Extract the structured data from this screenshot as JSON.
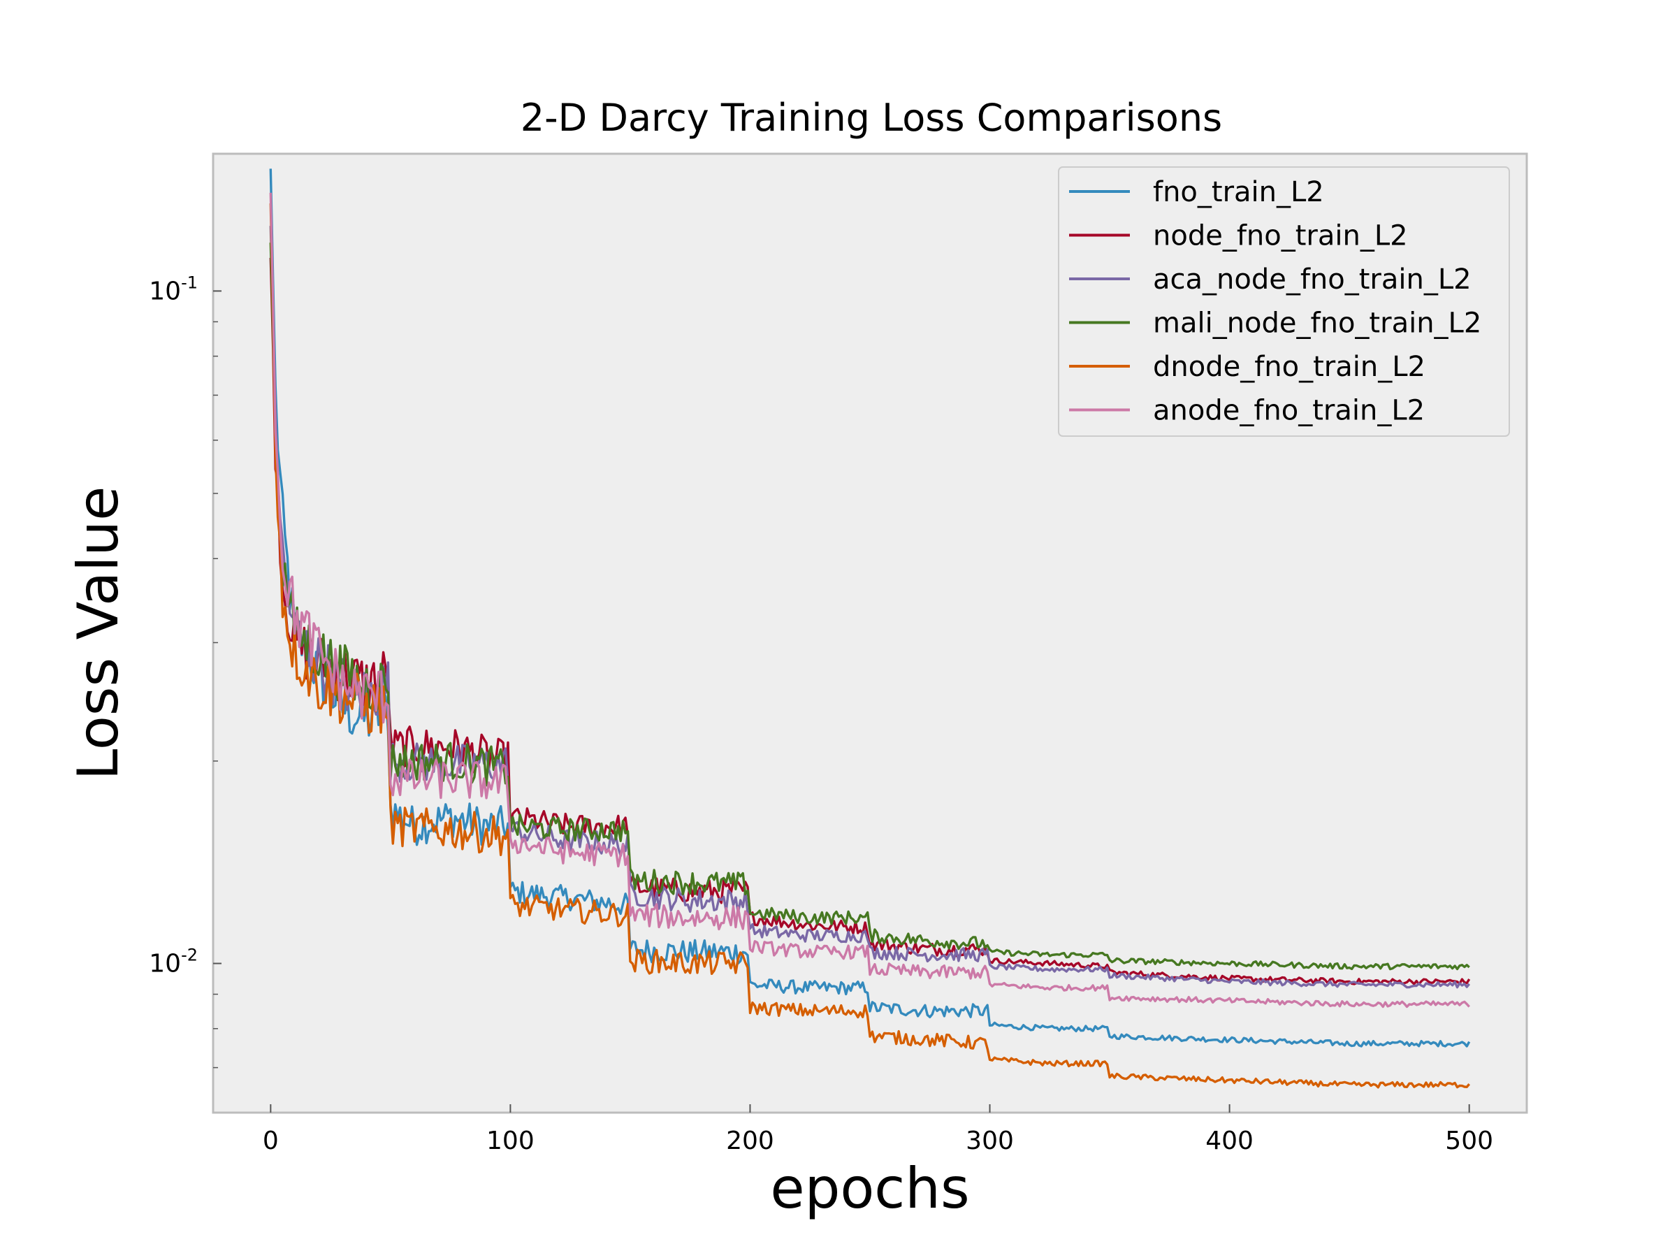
{
  "chart_data": {
    "type": "line",
    "title": "2-D Darcy Training Loss Comparisons",
    "xlabel": "epochs",
    "ylabel": "Loss Value",
    "xlim": [
      -24,
      524
    ],
    "ylim": [
      0.006,
      0.16
    ],
    "yscale": "log",
    "x_ticks": [
      0,
      100,
      200,
      300,
      400,
      500
    ],
    "y_ticks": [
      {
        "value": 0.1,
        "base": "10",
        "exp": "-1"
      },
      {
        "value": 0.01,
        "base": "10",
        "exp": "-2"
      }
    ],
    "grid": false,
    "legend_position": "top-right",
    "series": [
      {
        "name": "fno_train_L2",
        "color": "#348ABD",
        "points": [
          [
            0,
            0.152
          ],
          [
            2,
            0.07
          ],
          [
            5,
            0.045
          ],
          [
            10,
            0.031
          ],
          [
            20,
            0.027
          ],
          [
            30,
            0.024
          ],
          [
            40,
            0.023
          ],
          [
            49,
            0.024
          ],
          [
            50,
            0.017
          ],
          [
            60,
            0.016
          ],
          [
            75,
            0.0165
          ],
          [
            90,
            0.016
          ],
          [
            99,
            0.016
          ],
          [
            100,
            0.0128
          ],
          [
            125,
            0.0125
          ],
          [
            149,
            0.0122
          ],
          [
            150,
            0.0105
          ],
          [
            175,
            0.0104
          ],
          [
            199,
            0.0104
          ],
          [
            200,
            0.0093
          ],
          [
            225,
            0.0092
          ],
          [
            249,
            0.0092
          ],
          [
            250,
            0.0086
          ],
          [
            275,
            0.0085
          ],
          [
            299,
            0.0085
          ],
          [
            300,
            0.0081
          ],
          [
            325,
            0.008
          ],
          [
            349,
            0.008
          ],
          [
            350,
            0.0078
          ],
          [
            400,
            0.0077
          ],
          [
            450,
            0.0076
          ],
          [
            500,
            0.0076
          ]
        ]
      },
      {
        "name": "node_fno_train_L2",
        "color": "#A60628",
        "points": [
          [
            0,
            0.112
          ],
          [
            2,
            0.06
          ],
          [
            5,
            0.037
          ],
          [
            10,
            0.03
          ],
          [
            20,
            0.028
          ],
          [
            30,
            0.027
          ],
          [
            40,
            0.026
          ],
          [
            49,
            0.027
          ],
          [
            50,
            0.021
          ],
          [
            75,
            0.021
          ],
          [
            99,
            0.02
          ],
          [
            100,
            0.0165
          ],
          [
            125,
            0.016
          ],
          [
            149,
            0.016
          ],
          [
            150,
            0.013
          ],
          [
            175,
            0.0128
          ],
          [
            199,
            0.0128
          ],
          [
            200,
            0.0117
          ],
          [
            225,
            0.0114
          ],
          [
            249,
            0.0113
          ],
          [
            250,
            0.0107
          ],
          [
            275,
            0.0105
          ],
          [
            299,
            0.0105
          ],
          [
            300,
            0.0101
          ],
          [
            325,
            0.01
          ],
          [
            349,
            0.0099
          ],
          [
            350,
            0.0097
          ],
          [
            400,
            0.0095
          ],
          [
            450,
            0.0094
          ],
          [
            500,
            0.0094
          ]
        ]
      },
      {
        "name": "aca_node_fno_train_L2",
        "color": "#7A68A6",
        "points": [
          [
            0,
            0.125
          ],
          [
            2,
            0.065
          ],
          [
            5,
            0.04
          ],
          [
            10,
            0.031
          ],
          [
            20,
            0.028
          ],
          [
            30,
            0.026
          ],
          [
            40,
            0.025
          ],
          [
            49,
            0.026
          ],
          [
            50,
            0.02
          ],
          [
            75,
            0.0198
          ],
          [
            99,
            0.0198
          ],
          [
            100,
            0.0158
          ],
          [
            125,
            0.0152
          ],
          [
            149,
            0.015
          ],
          [
            150,
            0.0127
          ],
          [
            175,
            0.0124
          ],
          [
            199,
            0.0124
          ],
          [
            200,
            0.0112
          ],
          [
            225,
            0.011
          ],
          [
            249,
            0.011
          ],
          [
            250,
            0.0104
          ],
          [
            275,
            0.0103
          ],
          [
            299,
            0.0103
          ],
          [
            300,
            0.0099
          ],
          [
            325,
            0.0098
          ],
          [
            349,
            0.0098
          ],
          [
            350,
            0.0096
          ],
          [
            400,
            0.0094
          ],
          [
            450,
            0.0093
          ],
          [
            500,
            0.0093
          ]
        ]
      },
      {
        "name": "mali_node_fno_train_L2",
        "color": "#467821",
        "points": [
          [
            0,
            0.118
          ],
          [
            2,
            0.062
          ],
          [
            5,
            0.039
          ],
          [
            10,
            0.031
          ],
          [
            20,
            0.029
          ],
          [
            30,
            0.027
          ],
          [
            40,
            0.026
          ],
          [
            49,
            0.026
          ],
          [
            50,
            0.02
          ],
          [
            75,
            0.02
          ],
          [
            99,
            0.0195
          ],
          [
            100,
            0.016
          ],
          [
            125,
            0.0158
          ],
          [
            149,
            0.0158
          ],
          [
            150,
            0.0133
          ],
          [
            175,
            0.0132
          ],
          [
            199,
            0.0131
          ],
          [
            200,
            0.0119
          ],
          [
            225,
            0.0117
          ],
          [
            249,
            0.0117
          ],
          [
            250,
            0.011
          ],
          [
            275,
            0.0108
          ],
          [
            299,
            0.0107
          ],
          [
            300,
            0.0104
          ],
          [
            325,
            0.0103
          ],
          [
            349,
            0.0103
          ],
          [
            350,
            0.0101
          ],
          [
            400,
            0.01
          ],
          [
            450,
            0.0099
          ],
          [
            500,
            0.0099
          ]
        ]
      },
      {
        "name": "dnode_fno_train_L2",
        "color": "#D55E00",
        "points": [
          [
            0,
            0.135
          ],
          [
            2,
            0.06
          ],
          [
            5,
            0.035
          ],
          [
            10,
            0.029
          ],
          [
            20,
            0.026
          ],
          [
            30,
            0.025
          ],
          [
            40,
            0.024
          ],
          [
            49,
            0.024
          ],
          [
            50,
            0.016
          ],
          [
            75,
            0.0158
          ],
          [
            99,
            0.0155
          ],
          [
            100,
            0.0122
          ],
          [
            125,
            0.012
          ],
          [
            149,
            0.0118
          ],
          [
            150,
            0.0101
          ],
          [
            175,
            0.01
          ],
          [
            199,
            0.01
          ],
          [
            200,
            0.0086
          ],
          [
            225,
            0.0085
          ],
          [
            249,
            0.0085
          ],
          [
            250,
            0.0078
          ],
          [
            275,
            0.0077
          ],
          [
            299,
            0.0076
          ],
          [
            300,
            0.0072
          ],
          [
            325,
            0.0071
          ],
          [
            349,
            0.0071
          ],
          [
            350,
            0.0068
          ],
          [
            400,
            0.0067
          ],
          [
            450,
            0.0066
          ],
          [
            500,
            0.0066
          ]
        ]
      },
      {
        "name": "anode_fno_train_L2",
        "color": "#CC79A7",
        "points": [
          [
            0,
            0.14
          ],
          [
            2,
            0.065
          ],
          [
            5,
            0.04
          ],
          [
            10,
            0.033
          ],
          [
            20,
            0.029
          ],
          [
            30,
            0.026
          ],
          [
            40,
            0.025
          ],
          [
            49,
            0.025
          ],
          [
            50,
            0.0188
          ],
          [
            75,
            0.0188
          ],
          [
            99,
            0.0185
          ],
          [
            100,
            0.0152
          ],
          [
            125,
            0.0146
          ],
          [
            149,
            0.0145
          ],
          [
            150,
            0.0118
          ],
          [
            175,
            0.0117
          ],
          [
            199,
            0.0117
          ],
          [
            200,
            0.0106
          ],
          [
            225,
            0.0104
          ],
          [
            249,
            0.0104
          ],
          [
            250,
            0.0098
          ],
          [
            275,
            0.0097
          ],
          [
            299,
            0.0097
          ],
          [
            300,
            0.0093
          ],
          [
            325,
            0.0092
          ],
          [
            349,
            0.0092
          ],
          [
            350,
            0.0089
          ],
          [
            400,
            0.0088
          ],
          [
            450,
            0.0087
          ],
          [
            500,
            0.0087
          ]
        ]
      }
    ]
  }
}
